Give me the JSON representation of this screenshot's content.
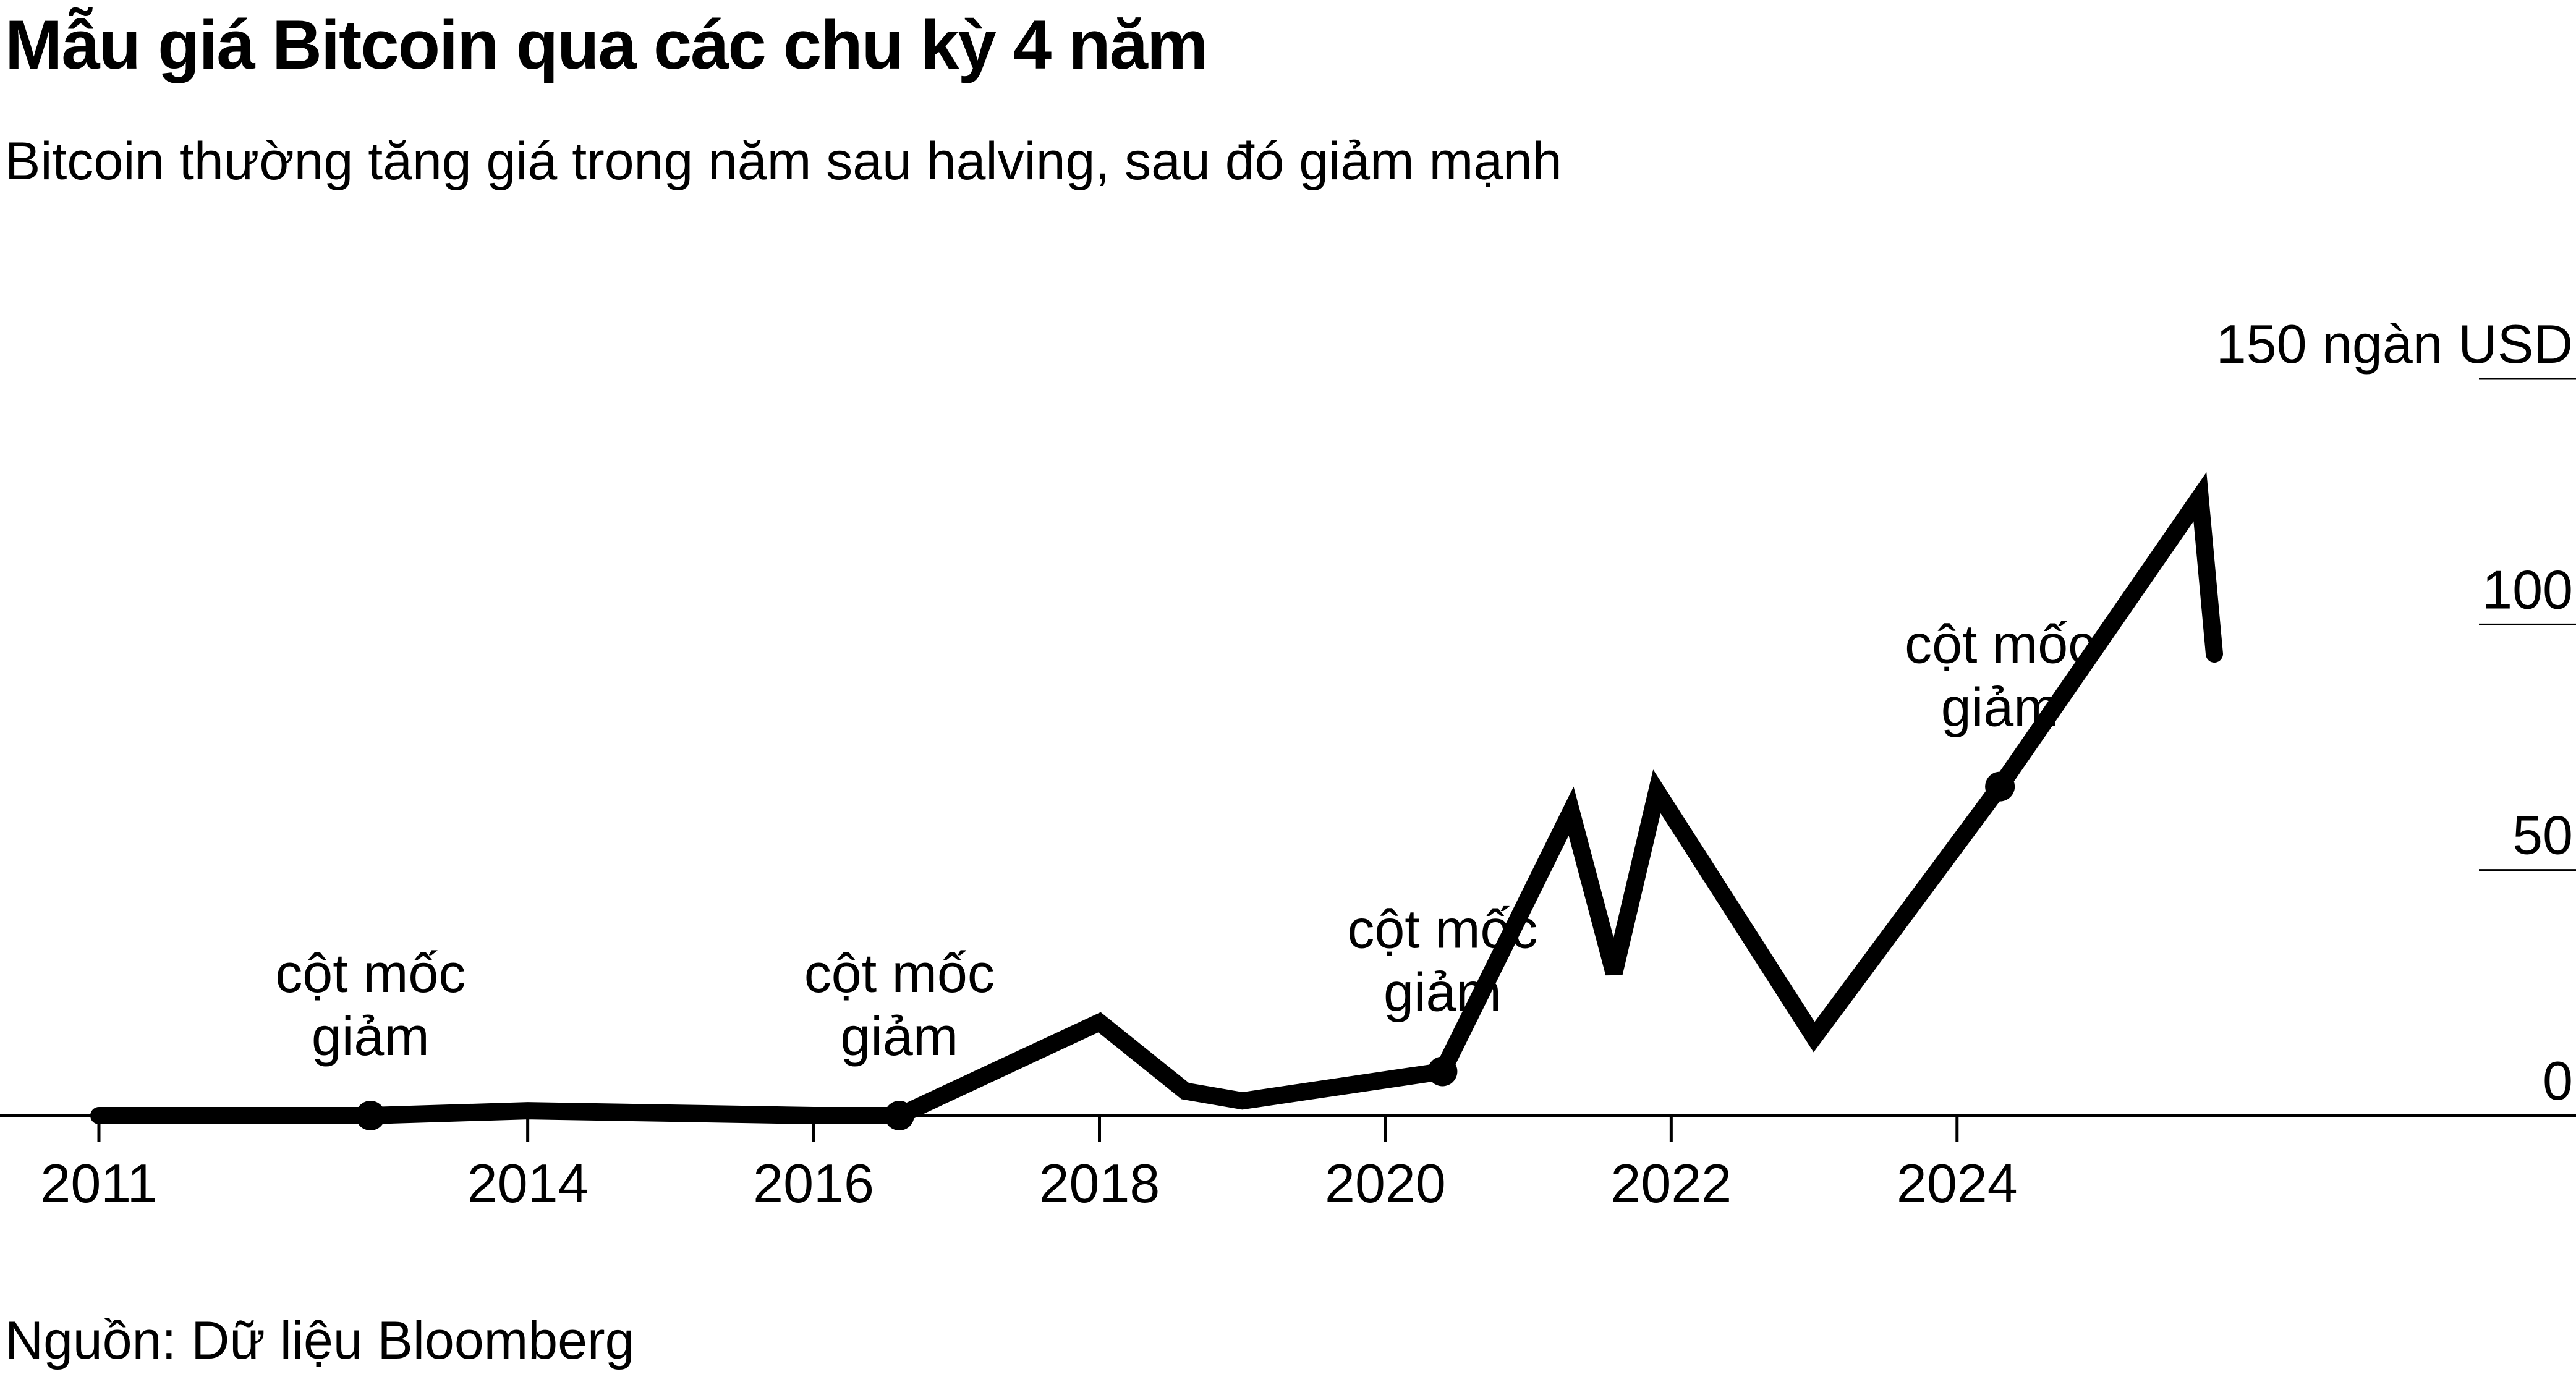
{
  "header": {
    "title": "Mẫu giá Bitcoin qua các chu kỳ 4 năm",
    "subtitle": "Bitcoin thường tăng giá trong năm sau halving, sau đó giảm mạnh"
  },
  "footer": {
    "source": "Nguồn: Dữ liệu Bloomberg"
  },
  "chart_data": {
    "type": "line",
    "title": "Mẫu giá Bitcoin qua các chu kỳ 4 năm",
    "subtitle": "Bitcoin thường tăng giá trong năm sau halving, sau đó giảm mạnh",
    "xlabel": "",
    "ylabel": "",
    "xlim": [
      2011,
      2028.3
    ],
    "ylim": [
      0,
      150
    ],
    "x_ticks": [
      2011,
      2014,
      2016,
      2018,
      2020,
      2022,
      2024
    ],
    "x_tick_labels": [
      "2011",
      "2014",
      "2016",
      "2018",
      "2020",
      "2022",
      "2024"
    ],
    "y_ticks": [
      0,
      50,
      100,
      150
    ],
    "y_tick_labels": [
      "0",
      "50",
      "100",
      "150 ngàn USD"
    ],
    "grid": "horizontal",
    "legend": "none",
    "line_color": "#000000",
    "series": [
      {
        "x": [
          2011.0,
          2012.9,
          2014.0,
          2016.0,
          2016.6,
          2018.0,
          2018.6,
          2019.0,
          2020.4,
          2021.3,
          2021.6,
          2021.9,
          2023.0,
          2024.3,
          2025.7,
          2025.8
        ],
        "y": [
          0,
          0,
          1,
          0,
          0,
          19,
          5,
          3,
          9,
          62,
          29,
          66,
          16,
          67,
          126,
          94
        ]
      }
    ],
    "milestones": [
      {
        "x": 2012.9,
        "y": 0,
        "label": "cột mốc giảm"
      },
      {
        "x": 2016.6,
        "y": 0,
        "label": "cột mốc giảm"
      },
      {
        "x": 2020.4,
        "y": 9,
        "label": "cột mốc giảm"
      },
      {
        "x": 2024.3,
        "y": 67,
        "label": "cột mốc giảm"
      }
    ]
  }
}
